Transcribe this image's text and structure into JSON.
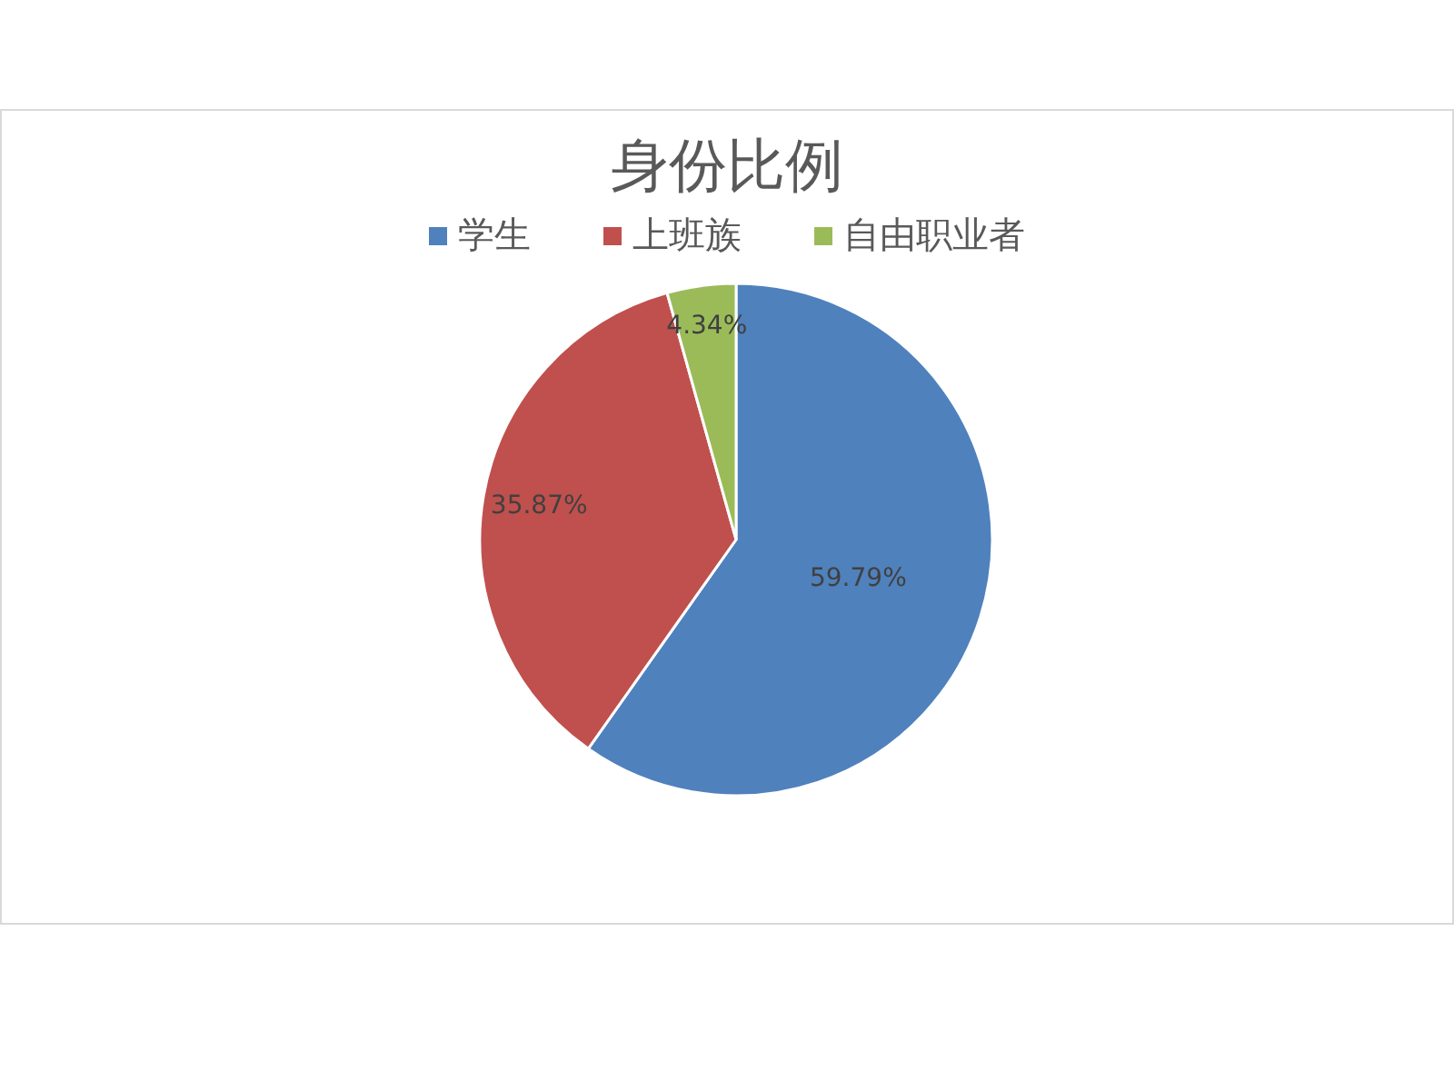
{
  "chart_data": {
    "type": "pie",
    "title": "身份比例",
    "categories": [
      "学生",
      "上班族",
      "自由职业者"
    ],
    "values": [
      59.79,
      35.87,
      4.34
    ],
    "colors": [
      "#4f81bd",
      "#c0504d",
      "#9bbb59"
    ],
    "value_labels": [
      "59.79%",
      "35.87%",
      "4.34%"
    ],
    "legend": "top"
  }
}
